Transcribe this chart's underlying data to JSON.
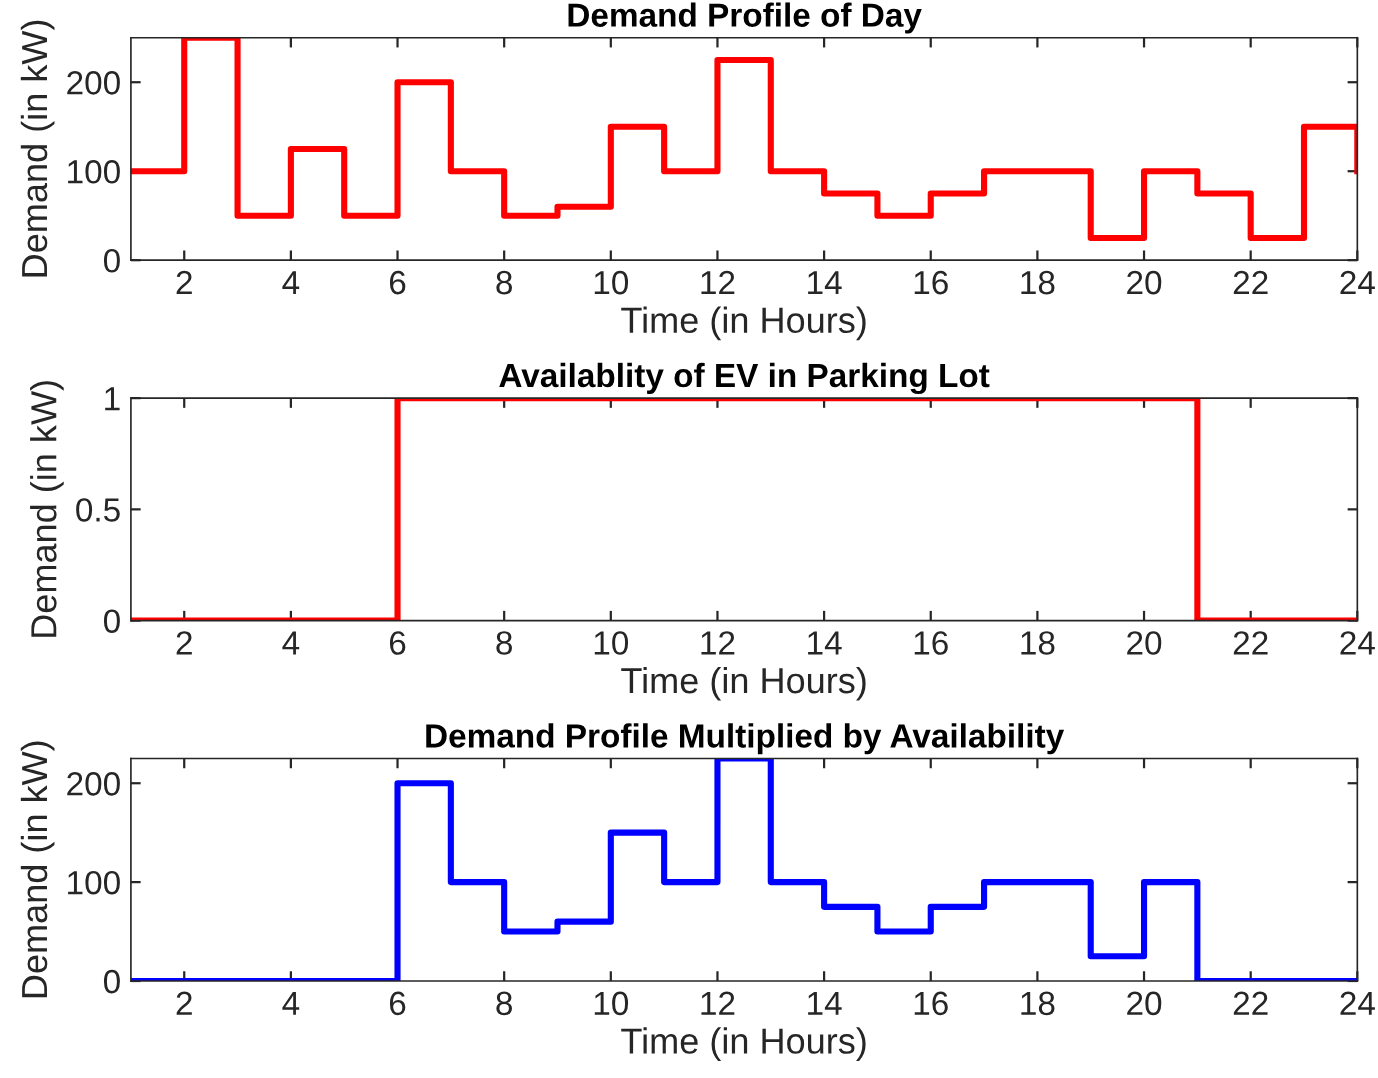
{
  "chart_data": [
    {
      "type": "step",
      "title": "Demand Profile of Day",
      "xlabel": "Time (in Hours)",
      "ylabel": "Demand (in kW)",
      "x": [
        1,
        2,
        3,
        4,
        5,
        6,
        7,
        8,
        9,
        10,
        11,
        12,
        13,
        14,
        15,
        16,
        17,
        18,
        19,
        20,
        21,
        22,
        23,
        24
      ],
      "series": [
        {
          "color": "#ff0000",
          "values": [
            100,
            250,
            50,
            125,
            50,
            200,
            100,
            50,
            60,
            150,
            100,
            225,
            100,
            75,
            50,
            75,
            100,
            100,
            25,
            100,
            75,
            25,
            150,
            100
          ]
        }
      ],
      "xlim": [
        1,
        24
      ],
      "xticks": [
        2,
        4,
        6,
        8,
        10,
        12,
        14,
        16,
        18,
        20,
        22,
        24
      ],
      "ylim": [
        0,
        250
      ],
      "yticks": [
        0,
        100,
        200
      ],
      "grid": false
    },
    {
      "type": "step",
      "title": "Availablity of EV in Parking Lot",
      "xlabel": "Time (in Hours)",
      "ylabel": "Demand (in kW)",
      "x": [
        1,
        2,
        3,
        4,
        5,
        6,
        7,
        8,
        9,
        10,
        11,
        12,
        13,
        14,
        15,
        16,
        17,
        18,
        19,
        20,
        21,
        22,
        23,
        24
      ],
      "series": [
        {
          "color": "#ff0000",
          "values": [
            0,
            0,
            0,
            0,
            0,
            1,
            1,
            1,
            1,
            1,
            1,
            1,
            1,
            1,
            1,
            1,
            1,
            1,
            1,
            1,
            0,
            0,
            0,
            0
          ]
        }
      ],
      "xlim": [
        1,
        24
      ],
      "xticks": [
        2,
        4,
        6,
        8,
        10,
        12,
        14,
        16,
        18,
        20,
        22,
        24
      ],
      "ylim": [
        0,
        1
      ],
      "yticks": [
        0,
        0.5,
        1
      ],
      "grid": false
    },
    {
      "type": "step",
      "title": "Demand Profile Multiplied by Availability",
      "xlabel": "Time (in Hours)",
      "ylabel": "Demand (in kW)",
      "x": [
        1,
        2,
        3,
        4,
        5,
        6,
        7,
        8,
        9,
        10,
        11,
        12,
        13,
        14,
        15,
        16,
        17,
        18,
        19,
        20,
        21,
        22,
        23,
        24
      ],
      "series": [
        {
          "color": "#0000ff",
          "values": [
            0,
            0,
            0,
            0,
            0,
            200,
            100,
            50,
            60,
            150,
            100,
            225,
            100,
            75,
            50,
            75,
            100,
            100,
            25,
            100,
            0,
            0,
            0,
            0
          ]
        }
      ],
      "xlim": [
        1,
        24
      ],
      "xticks": [
        2,
        4,
        6,
        8,
        10,
        12,
        14,
        16,
        18,
        20,
        22,
        24
      ],
      "ylim": [
        0,
        225
      ],
      "yticks": [
        0,
        100,
        200
      ],
      "grid": false
    }
  ]
}
